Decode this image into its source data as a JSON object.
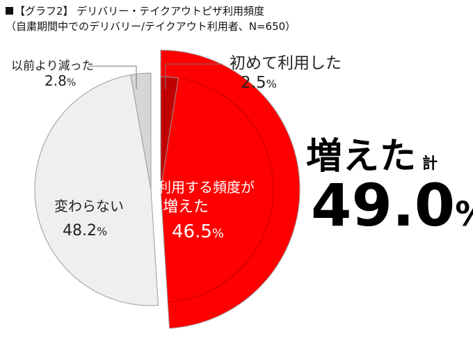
{
  "title": "【グラフ2】 デリバリー・テイクアウトピザ利用頻度",
  "subtitle": "（自粛期間中でのデリバリー/テイクアウト利用者、N=650）",
  "colors": {
    "increased_much": "#ff0000",
    "increased_first": "#c00000",
    "unchanged": "#efefef",
    "decreased": "#d6d6d6",
    "stroke": "#9a9a9a"
  },
  "chart_data": {
    "type": "pie",
    "unit": "%",
    "start_angle": "12 o'clock",
    "direction": "clockwise",
    "slices": [
      {
        "key": "first_time",
        "label": "初めて利用した",
        "value": 2.5,
        "value_text": "2.5",
        "color": "#c00000",
        "exploded": true
      },
      {
        "key": "increased",
        "label": "利用する頻度が増えた",
        "label_lines": [
          "利用する頻度が",
          "増えた"
        ],
        "value": 46.5,
        "value_text": "46.5",
        "color": "#ff0000",
        "exploded": true
      },
      {
        "key": "unchanged",
        "label": "変わらない",
        "value": 48.2,
        "value_text": "48.2",
        "color": "#efefef",
        "exploded": false
      },
      {
        "key": "decreased",
        "label": "以前より減った",
        "value": 2.8,
        "value_text": "2.8",
        "color": "#d6d6d6",
        "exploded": false
      }
    ],
    "total_increase": {
      "label": "増えた",
      "suffix": "計",
      "value": 49.0,
      "value_text": "49.0",
      "unit": "%"
    }
  }
}
